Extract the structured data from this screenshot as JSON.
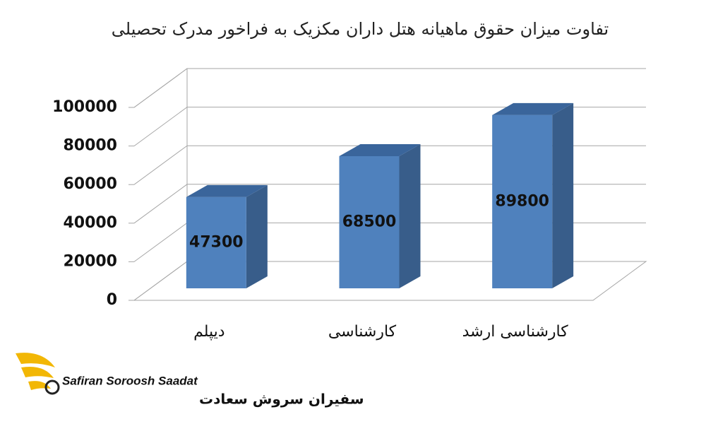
{
  "chart_data": {
    "type": "bar3d",
    "title": "تفاوت میزان حقوق ماهیانه هتل داران مکزیک به فراخور مدرک تحصیلی",
    "categories": [
      "دیپلم",
      "کارشناسی",
      "کارشناسی ارشد"
    ],
    "values": [
      47300,
      68500,
      89800
    ],
    "color": "#4f81bd",
    "ylim": [
      0,
      100000
    ],
    "yticks": [
      0,
      20000,
      40000,
      60000,
      80000,
      100000
    ],
    "grid": true
  },
  "logo": {
    "latin": "Safiran Soroosh Saadat",
    "persian": "سفیران سروش سعادت"
  }
}
